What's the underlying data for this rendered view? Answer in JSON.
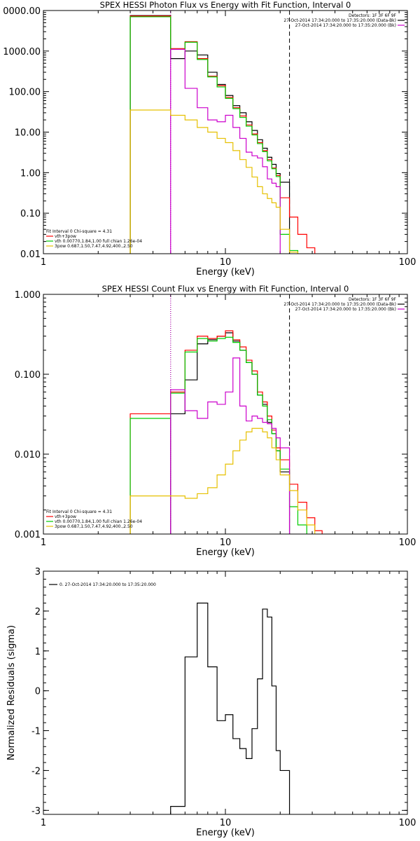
{
  "chart_data": [
    {
      "type": "line",
      "title": "SPEX HESSI Photon Flux vs Energy with Fit Function, Interval 0",
      "xlabel": "Energy (keV)",
      "ylabel": "",
      "xscale": "log",
      "yscale": "log",
      "xlim": [
        1,
        100
      ],
      "ylim": [
        0.01,
        10000
      ],
      "x_ticks": [
        "1",
        "10",
        "100"
      ],
      "y_ticks": [
        "0000.00",
        "1000.00",
        "100.00",
        "10.00",
        "1.00",
        "0.10",
        "0.01"
      ],
      "y_tick_values": [
        10000,
        1000,
        100,
        10,
        1,
        0.1,
        0.01
      ],
      "vlines": [
        {
          "x": 5,
          "style": "dotted",
          "color": "#000000"
        },
        {
          "x": 5,
          "style": "dotted",
          "color": "#cc00cc"
        },
        {
          "x": 22.5,
          "style": "dashed",
          "color": "#000000"
        }
      ],
      "info_right": [
        "Detectors: 1F 3F 6F 9F",
        "27-Oct-2014 17:34:20.000 to 17:35:20.000 (Data-Bk)",
        "27-Oct-2014 17:34:20.000 to 17:35:20.000 (Bk)"
      ],
      "info_colors": [
        "#000000",
        "#000000",
        "#cc00cc"
      ],
      "info_left": [
        "Fit Interval 0   Chi-square = 4.31",
        "vth+3pow",
        "vth 0.00770,1.84,1.00  full chian 1.26e-04",
        "3pow 0.687,1.50,7.47,4.92,400.,2.50"
      ],
      "info_left_colors": [
        "#000000",
        "#ff0000",
        "#00cc00",
        "#e6c000"
      ],
      "edges": [
        3,
        5,
        6,
        7,
        8,
        9,
        10,
        11,
        12,
        13,
        14,
        15,
        16,
        17,
        18,
        19,
        20,
        22.5,
        25,
        28,
        31
      ],
      "series": [
        {
          "color": "#000000",
          "values": [
            7500,
            650,
            1000,
            800,
            300,
            150,
            80,
            45,
            30,
            18,
            11,
            6.5,
            4,
            2.4,
            1.6,
            0.95,
            0.58,
            null,
            null,
            null
          ]
        },
        {
          "color": "#ff0000",
          "values": [
            7300,
            1150,
            1700,
            650,
            240,
            140,
            72,
            40,
            25,
            15,
            9,
            5.5,
            3.5,
            2.1,
            1.3,
            0.85,
            0.24,
            0.08,
            0.03,
            0.014
          ]
        },
        {
          "color": "#00cc00",
          "values": [
            7000,
            1100,
            1650,
            620,
            230,
            130,
            68,
            38,
            23,
            14,
            8.5,
            5.2,
            3.3,
            1.95,
            1.25,
            0.8,
            0.03,
            0.012,
            null,
            null
          ]
        },
        {
          "color": "#cc00cc",
          "values": [
            null,
            1100,
            120,
            40,
            20,
            18,
            26,
            13,
            7,
            3.2,
            2.6,
            2.3,
            1.4,
            0.7,
            0.55,
            0.45,
            null,
            null,
            null,
            null
          ]
        },
        {
          "color": "#e6c000",
          "values": [
            35,
            26,
            20,
            13,
            10,
            7,
            5.5,
            3.5,
            2.1,
            1.35,
            0.78,
            0.45,
            0.3,
            0.23,
            0.18,
            0.14,
            0.04,
            0.011,
            null,
            null
          ]
        }
      ]
    },
    {
      "type": "line",
      "title": "SPEX HESSI Count Flux vs Energy with Fit Function, Interval 0",
      "xlabel": "Energy (keV)",
      "ylabel": "",
      "xscale": "log",
      "yscale": "log",
      "xlim": [
        1,
        100
      ],
      "ylim": [
        0.001,
        1
      ],
      "x_ticks": [
        "1",
        "10",
        "100"
      ],
      "y_ticks": [
        "1.000",
        "0.100",
        "0.010",
        "0.001"
      ],
      "y_tick_values": [
        1,
        0.1,
        0.01,
        0.001
      ],
      "vlines": [
        {
          "x": 5,
          "style": "dotted",
          "color": "#000000"
        },
        {
          "x": 5,
          "style": "dotted",
          "color": "#cc00cc"
        },
        {
          "x": 22.5,
          "style": "dashed",
          "color": "#000000"
        }
      ],
      "info_right": [
        "Detectors: 1F 3F 6F 9F",
        "27-Oct-2014 17:34:20.000 to 17:35:20.000 (Data-Bk)",
        "27-Oct-2014 17:34:20.000 to 17:35:20.000 (Bk)"
      ],
      "info_colors": [
        "#000000",
        "#000000",
        "#cc00cc"
      ],
      "info_left": [
        "Fit Interval 0   Chi-square = 4.31",
        "vth+3pow",
        "vth 0.00770,1.84,1.00  full chian 1.26e-04",
        "3pow 0.687,1.50,7.47,4.92,400.,2.50"
      ],
      "info_left_colors": [
        "#000000",
        "#ff0000",
        "#00cc00",
        "#e6c000"
      ],
      "edges": [
        3,
        5,
        6,
        7,
        8,
        9,
        10,
        11,
        12,
        13,
        14,
        15,
        16,
        17,
        18,
        19,
        20,
        22.5,
        25,
        28,
        31,
        34
      ],
      "series": [
        {
          "color": "#000000",
          "values": [
            null,
            0.032,
            0.085,
            0.24,
            0.27,
            0.3,
            0.33,
            0.26,
            0.2,
            0.14,
            0.1,
            0.055,
            0.042,
            0.025,
            0.018,
            0.011,
            0.006,
            null,
            null,
            null,
            null
          ]
        },
        {
          "color": "#ff0000",
          "values": [
            0.032,
            0.06,
            0.2,
            0.3,
            0.28,
            0.3,
            0.35,
            0.27,
            0.22,
            0.15,
            0.11,
            0.06,
            0.045,
            0.03,
            0.02,
            0.012,
            0.0085,
            0.0042,
            0.0025,
            0.0016,
            0.0011
          ]
        },
        {
          "color": "#00cc00",
          "values": [
            0.028,
            0.058,
            0.19,
            0.28,
            0.26,
            0.28,
            0.29,
            0.25,
            0.2,
            0.14,
            0.1,
            0.055,
            0.04,
            0.027,
            0.018,
            0.011,
            0.0065,
            0.0022,
            0.0013,
            null,
            null
          ]
        },
        {
          "color": "#cc00cc",
          "values": [
            null,
            0.064,
            0.035,
            0.028,
            0.045,
            0.042,
            0.06,
            0.16,
            0.04,
            0.026,
            0.03,
            0.028,
            0.025,
            0.024,
            0.021,
            0.016,
            0.012,
            null,
            null,
            null,
            null
          ]
        },
        {
          "color": "#e6c000",
          "values": [
            0.003,
            0.003,
            0.0028,
            0.0032,
            0.0038,
            0.0055,
            0.0075,
            0.011,
            0.015,
            0.019,
            0.021,
            0.021,
            0.019,
            0.016,
            0.012,
            0.0085,
            0.0055,
            0.0035,
            0.002,
            0.0013,
            null
          ]
        }
      ]
    },
    {
      "type": "line",
      "title": "",
      "xlabel": "Energy (keV)",
      "ylabel": "Normalized Residuals (sigma)",
      "xscale": "log",
      "yscale": "linear",
      "xlim": [
        1,
        100
      ],
      "ylim": [
        -3.1,
        3
      ],
      "x_ticks": [
        "1",
        "10",
        "100"
      ],
      "y_ticks": [
        "3",
        "2",
        "1",
        "0",
        "-1",
        "-2",
        "-3"
      ],
      "y_tick_values": [
        3,
        2,
        1,
        0,
        -1,
        -2,
        -3
      ],
      "legend": "0. 27-Oct-2014 17:34:20.000 to 17:35:20.000",
      "edges": [
        5,
        6,
        7,
        8,
        9,
        10,
        11,
        12,
        13,
        14,
        15,
        16,
        17,
        18,
        19,
        20,
        22.5
      ],
      "series": [
        {
          "color": "#000000",
          "values": [
            -2.9,
            0.85,
            2.2,
            0.6,
            -0.75,
            -0.6,
            -1.2,
            -1.45,
            -1.7,
            -0.95,
            0.3,
            2.05,
            1.85,
            0.12,
            -1.5,
            -2.0
          ]
        }
      ]
    }
  ]
}
